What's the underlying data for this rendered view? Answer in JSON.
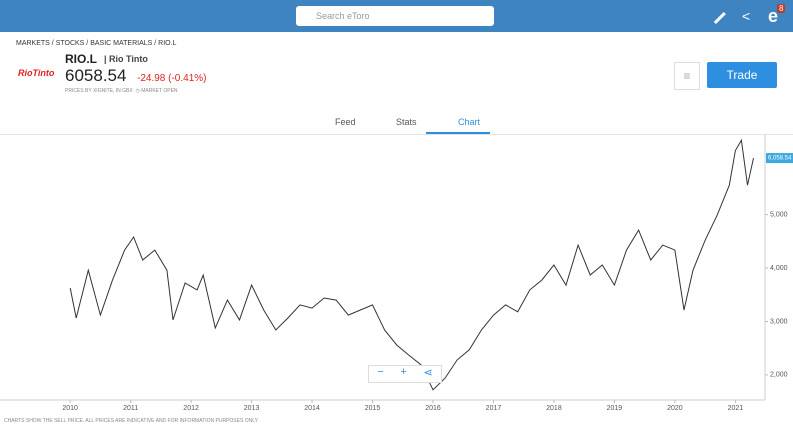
{
  "header": {
    "search_placeholder": "Search eToro",
    "notifications": "8"
  },
  "breadcrumb": [
    "MARKETS",
    "STOCKS",
    "BASIC MATERIALS",
    "RIO.L"
  ],
  "instrument": {
    "logo": "RioTinto",
    "symbol": "RIO.L",
    "name": "Rio Tinto",
    "price": "6058.54",
    "change": "-24.98 (-0.41%)",
    "source": "PRICES BY XIGNITE, IN GBX",
    "status": "MARKET OPEN",
    "trade_button": "Trade"
  },
  "tabs": [
    "Feed",
    "Stats",
    "Chart"
  ],
  "footer": "CHARTS SHOW THE SELL PRICE. ALL PRICES ARE INDICATIVE AND FOR INFORMATION PURPOSES ONLY",
  "chart_data": {
    "type": "line",
    "color": "#333333",
    "x": [
      2010.0,
      2010.1,
      2010.3,
      2010.5,
      2010.7,
      2010.9,
      2011.05,
      2011.2,
      2011.4,
      2011.6,
      2011.7,
      2011.9,
      2012.1,
      2012.2,
      2012.4,
      2012.6,
      2012.8,
      2013.0,
      2013.2,
      2013.4,
      2013.6,
      2013.8,
      2014.0,
      2014.2,
      2014.4,
      2014.6,
      2014.8,
      2015.0,
      2015.2,
      2015.4,
      2015.6,
      2015.8,
      2016.0,
      2016.2,
      2016.4,
      2016.6,
      2016.8,
      2017.0,
      2017.2,
      2017.4,
      2017.6,
      2017.8,
      2018.0,
      2018.2,
      2018.4,
      2018.6,
      2018.8,
      2019.0,
      2019.2,
      2019.4,
      2019.6,
      2019.8,
      2020.0,
      2020.15,
      2020.3,
      2020.5,
      2020.7,
      2020.9,
      2021.0,
      2021.1,
      2021.2,
      2021.3
    ],
    "values": [
      3626,
      3065,
      3960,
      3120,
      3775,
      4336,
      4580,
      4150,
      4336,
      3960,
      3030,
      3720,
      3590,
      3870,
      2880,
      3400,
      3030,
      3680,
      3215,
      2840,
      3065,
      3310,
      3250,
      3440,
      3400,
      3120,
      3215,
      3310,
      2840,
      2560,
      2370,
      2190,
      1720,
      1940,
      2280,
      2470,
      2840,
      3120,
      3310,
      3180,
      3590,
      3775,
      4056,
      3680,
      4430,
      3870,
      4056,
      3680,
      4336,
      4710,
      4150,
      4430,
      4336,
      3215,
      3960,
      4520,
      4990,
      5550,
      6200,
      6390,
      5550,
      6058.54
    ],
    "value_labels": [
      null,
      null,
      null,
      null,
      null,
      null,
      null,
      null,
      null,
      null,
      null,
      null,
      null,
      null,
      null,
      null,
      null,
      null,
      null,
      null,
      null,
      null,
      null,
      null,
      null,
      null,
      null,
      null,
      null,
      null,
      null,
      null,
      null,
      null,
      null,
      null,
      null,
      null,
      null,
      null,
      null,
      null,
      null,
      null,
      null,
      null,
      null,
      null,
      null,
      null,
      null,
      null,
      null,
      null,
      null,
      null,
      null,
      null,
      null,
      null,
      null,
      "6,058.54"
    ],
    "xlim": [
      2008.84,
      2021.49
    ],
    "xticks": [
      2010,
      2011,
      2012,
      2013,
      2014,
      2015,
      2016,
      2017,
      2018,
      2019,
      2020,
      2021
    ],
    "ylim": [
      1530,
      6490
    ],
    "yticks": [
      {
        "value": 2000,
        "label": "2,000"
      },
      {
        "value": 3000,
        "label": "3,000"
      },
      {
        "value": 4000,
        "label": "4,000"
      },
      {
        "value": 5000,
        "label": "5,000"
      }
    ]
  }
}
